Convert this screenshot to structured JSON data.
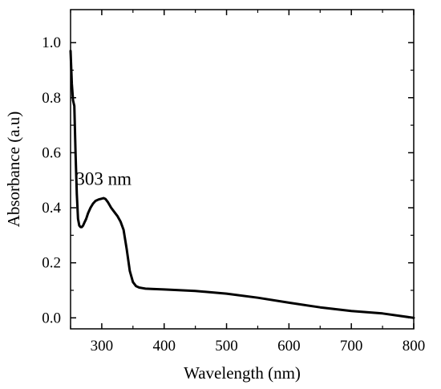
{
  "chart_data": {
    "type": "line",
    "title": "",
    "xlabel": "Wavelength (nm)",
    "ylabel": "Absorbance (a.u)",
    "xlim": [
      250,
      800
    ],
    "ylim": [
      -0.04,
      1.12
    ],
    "x_ticks": [
      300,
      400,
      500,
      600,
      700,
      800
    ],
    "y_ticks": [
      0.0,
      0.2,
      0.4,
      0.6,
      0.8,
      1.0
    ],
    "x_tick_labels": [
      "300",
      "400",
      "500",
      "600",
      "700",
      "800"
    ],
    "y_tick_labels": [
      "0.0",
      "0.2",
      "0.4",
      "0.6",
      "0.8",
      "1.0"
    ],
    "grid": false,
    "legend": "none",
    "line_color": "#000000",
    "annotations": [
      {
        "text": "303 nm",
        "x": 303,
        "y": 0.44
      }
    ],
    "series": [
      {
        "x": [
          250,
          252,
          254,
          256,
          258,
          260,
          262,
          264,
          266,
          268,
          270,
          272,
          275,
          278,
          282,
          286,
          290,
          295,
          300,
          303,
          306,
          310,
          315,
          320,
          325,
          330,
          335,
          340,
          345,
          350,
          355,
          360,
          365,
          370,
          380,
          400,
          450,
          500,
          550,
          600,
          650,
          700,
          750,
          800
        ],
        "y": [
          0.97,
          0.85,
          0.79,
          0.77,
          0.6,
          0.45,
          0.36,
          0.335,
          0.33,
          0.33,
          0.335,
          0.345,
          0.36,
          0.38,
          0.4,
          0.415,
          0.425,
          0.43,
          0.433,
          0.435,
          0.432,
          0.42,
          0.4,
          0.385,
          0.37,
          0.35,
          0.32,
          0.25,
          0.17,
          0.13,
          0.115,
          0.11,
          0.108,
          0.106,
          0.105,
          0.103,
          0.098,
          0.088,
          0.073,
          0.055,
          0.038,
          0.025,
          0.016,
          0.0
        ]
      }
    ]
  }
}
